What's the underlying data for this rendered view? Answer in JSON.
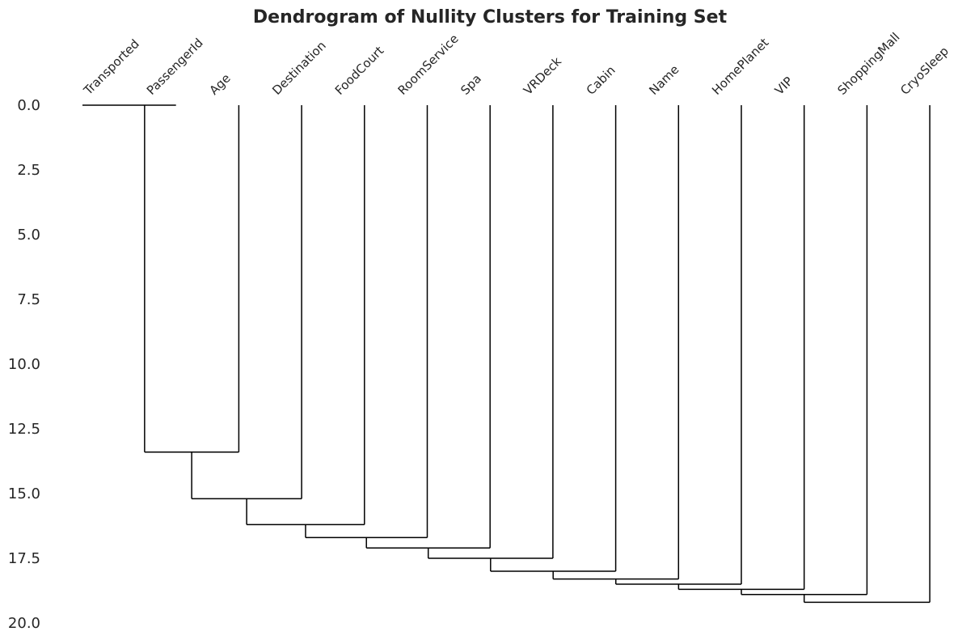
{
  "chart_data": {
    "type": "dendrogram",
    "title": "Dendrogram of Nullity Clusters for Training Set",
    "xlabel": "",
    "ylabel": "",
    "ylim": [
      0,
      20
    ],
    "y_inverted": true,
    "grid": false,
    "y_ticks": [
      "0.0",
      "2.5",
      "5.0",
      "7.5",
      "10.0",
      "12.5",
      "15.0",
      "17.5",
      "20.0"
    ],
    "leaves": [
      "Transported",
      "PassengerId",
      "Age",
      "Destination",
      "FoodCourt",
      "RoomService",
      "Spa",
      "VRDeck",
      "Cabin",
      "Name",
      "HomePlanet",
      "VIP",
      "ShoppingMall",
      "CryoSleep"
    ],
    "merges": [
      {
        "left": "Transported",
        "right": "PassengerId",
        "height": 0.0
      },
      {
        "left": "cluster-1",
        "right": "Age",
        "height": 13.4
      },
      {
        "left": "cluster-2",
        "right": "Destination",
        "height": 15.2
      },
      {
        "left": "cluster-3",
        "right": "FoodCourt",
        "height": 16.2
      },
      {
        "left": "cluster-4",
        "right": "RoomService",
        "height": 16.7
      },
      {
        "left": "cluster-5",
        "right": "Spa",
        "height": 17.1
      },
      {
        "left": "cluster-6",
        "right": "VRDeck",
        "height": 17.5
      },
      {
        "left": "cluster-7",
        "right": "Cabin",
        "height": 18.0
      },
      {
        "left": "cluster-8",
        "right": "Name",
        "height": 18.3
      },
      {
        "left": "cluster-9",
        "right": "HomePlanet",
        "height": 18.5
      },
      {
        "left": "cluster-10",
        "right": "VIP",
        "height": 18.7
      },
      {
        "left": "cluster-11",
        "right": "ShoppingMall",
        "height": 18.9
      },
      {
        "left": "cluster-12",
        "right": "CryoSleep",
        "height": 19.2
      }
    ]
  }
}
